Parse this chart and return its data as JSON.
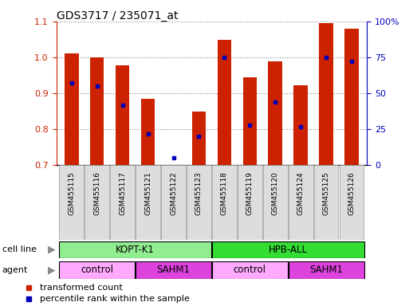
{
  "title": "GDS3717 / 235071_at",
  "samples": [
    "GSM455115",
    "GSM455116",
    "GSM455117",
    "GSM455121",
    "GSM455122",
    "GSM455123",
    "GSM455118",
    "GSM455119",
    "GSM455120",
    "GSM455124",
    "GSM455125",
    "GSM455126"
  ],
  "red_values": [
    1.01,
    1.0,
    0.978,
    0.885,
    0.7,
    0.85,
    1.048,
    0.945,
    0.99,
    0.922,
    1.095,
    1.08
  ],
  "blue_values_pct": [
    57,
    55,
    42,
    22,
    5,
    20,
    75,
    28,
    44,
    27,
    75,
    72
  ],
  "ylim_left": [
    0.7,
    1.1
  ],
  "ylim_right": [
    0,
    100
  ],
  "yticks_left": [
    0.7,
    0.8,
    0.9,
    1.0,
    1.1
  ],
  "yticks_right": [
    0,
    25,
    50,
    75,
    100
  ],
  "cell_line_groups": [
    {
      "label": "KOPT-K1",
      "start": 0,
      "end": 6,
      "color": "#90EE90"
    },
    {
      "label": "HPB-ALL",
      "start": 6,
      "end": 12,
      "color": "#33DD33"
    }
  ],
  "agent_groups": [
    {
      "label": "control",
      "start": 0,
      "end": 3,
      "color": "#FFAAFF"
    },
    {
      "label": "SAHM1",
      "start": 3,
      "end": 6,
      "color": "#DD44DD"
    },
    {
      "label": "control",
      "start": 6,
      "end": 9,
      "color": "#FFAAFF"
    },
    {
      "label": "SAHM1",
      "start": 9,
      "end": 12,
      "color": "#DD44DD"
    }
  ],
  "bar_color": "#CC2200",
  "dot_color": "#0000BB",
  "bar_bottom": 0.7,
  "legend_red": "transformed count",
  "legend_blue": "percentile rank within the sample",
  "ylabel_left_color": "#CC2200",
  "ylabel_right_color": "#0000BB",
  "grid_color": "#888888",
  "xtick_bg": "#DDDDDD"
}
